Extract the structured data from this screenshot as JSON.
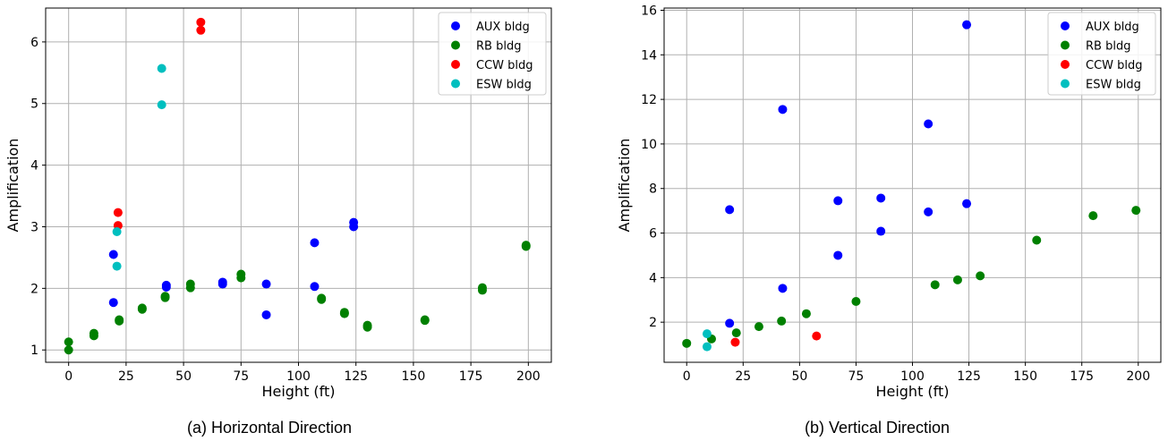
{
  "colors": {
    "AUX bldg": "#0000ff",
    "RB bldg": "#008000",
    "CCW bldg": "#ff0000",
    "ESW bldg": "#00bfbf"
  },
  "chart_data": [
    {
      "type": "scatter",
      "caption": "(a) Horizontal Direction",
      "xlabel": "Height (ft)",
      "ylabel": "Amplification",
      "xlim": [
        -10,
        210
      ],
      "ylim": [
        0.8,
        6.55
      ],
      "xticks": [
        0,
        25,
        50,
        75,
        100,
        125,
        150,
        175,
        200
      ],
      "yticks": [
        1,
        2,
        3,
        4,
        5,
        6
      ],
      "grid": true,
      "legend_position": "top-right",
      "series": [
        {
          "name": "AUX bldg",
          "points": [
            [
              19.5,
              2.55
            ],
            [
              19.5,
              1.77
            ],
            [
              42.5,
              2.05
            ],
            [
              42.5,
              2.02
            ],
            [
              67,
              2.1
            ],
            [
              67,
              2.07
            ],
            [
              86,
              2.07
            ],
            [
              86,
              1.57
            ],
            [
              107,
              2.74
            ],
            [
              107,
              2.03
            ],
            [
              124,
              3.07
            ],
            [
              124,
              3.0
            ]
          ]
        },
        {
          "name": "RB bldg",
          "points": [
            [
              0,
              1.13
            ],
            [
              0,
              1.0
            ],
            [
              11,
              1.27
            ],
            [
              11,
              1.23
            ],
            [
              22,
              1.49
            ],
            [
              22,
              1.47
            ],
            [
              32,
              1.68
            ],
            [
              32,
              1.66
            ],
            [
              42,
              1.87
            ],
            [
              42,
              1.85
            ],
            [
              53,
              2.07
            ],
            [
              53,
              2.01
            ],
            [
              75,
              2.23
            ],
            [
              75,
              2.17
            ],
            [
              110,
              1.84
            ],
            [
              110,
              1.82
            ],
            [
              120,
              1.61
            ],
            [
              120,
              1.59
            ],
            [
              130,
              1.4
            ],
            [
              130,
              1.37
            ],
            [
              155,
              1.49
            ],
            [
              155,
              1.48
            ],
            [
              180,
              2.01
            ],
            [
              180,
              1.97
            ],
            [
              199,
              2.7
            ],
            [
              199,
              2.68
            ]
          ]
        },
        {
          "name": "CCW bldg",
          "points": [
            [
              21.5,
              3.23
            ],
            [
              21.5,
              3.02
            ],
            [
              57.5,
              6.32
            ],
            [
              57.5,
              6.19
            ]
          ]
        },
        {
          "name": "ESW bldg",
          "points": [
            [
              40.5,
              5.57
            ],
            [
              40.5,
              4.98
            ],
            [
              21,
              2.92
            ],
            [
              21,
              2.36
            ]
          ]
        }
      ]
    },
    {
      "type": "scatter",
      "caption": "(b) Vertical Direction",
      "xlabel": "Height (ft)",
      "ylabel": "Amplification",
      "xlim": [
        -10,
        210
      ],
      "ylim": [
        0.2,
        16.1
      ],
      "xticks": [
        0,
        25,
        50,
        75,
        100,
        125,
        150,
        175,
        200
      ],
      "yticks": [
        2,
        4,
        6,
        8,
        10,
        12,
        14,
        16
      ],
      "grid": true,
      "legend_position": "top-right",
      "series": [
        {
          "name": "AUX bldg",
          "points": [
            [
              19,
              7.05
            ],
            [
              19,
              1.95
            ],
            [
              42.5,
              11.55
            ],
            [
              42.5,
              3.52
            ],
            [
              67,
              7.45
            ],
            [
              67,
              5.0
            ],
            [
              86,
              7.57
            ],
            [
              86,
              6.08
            ],
            [
              107,
              10.9
            ],
            [
              107,
              6.95
            ],
            [
              124,
              15.35
            ],
            [
              124,
              7.32
            ]
          ]
        },
        {
          "name": "RB bldg",
          "points": [
            [
              0,
              1.05
            ],
            [
              11,
              1.25
            ],
            [
              22,
              1.52
            ],
            [
              32,
              1.8
            ],
            [
              42,
              2.05
            ],
            [
              53,
              2.38
            ],
            [
              75,
              2.93
            ],
            [
              110,
              3.68
            ],
            [
              120,
              3.9
            ],
            [
              130,
              4.08
            ],
            [
              155,
              5.68
            ],
            [
              180,
              6.78
            ],
            [
              199,
              7.02
            ]
          ]
        },
        {
          "name": "CCW bldg",
          "points": [
            [
              21.5,
              1.1
            ],
            [
              57.5,
              1.38
            ]
          ]
        },
        {
          "name": "ESW bldg",
          "points": [
            [
              9,
              1.48
            ],
            [
              9,
              0.9
            ]
          ]
        }
      ]
    }
  ]
}
